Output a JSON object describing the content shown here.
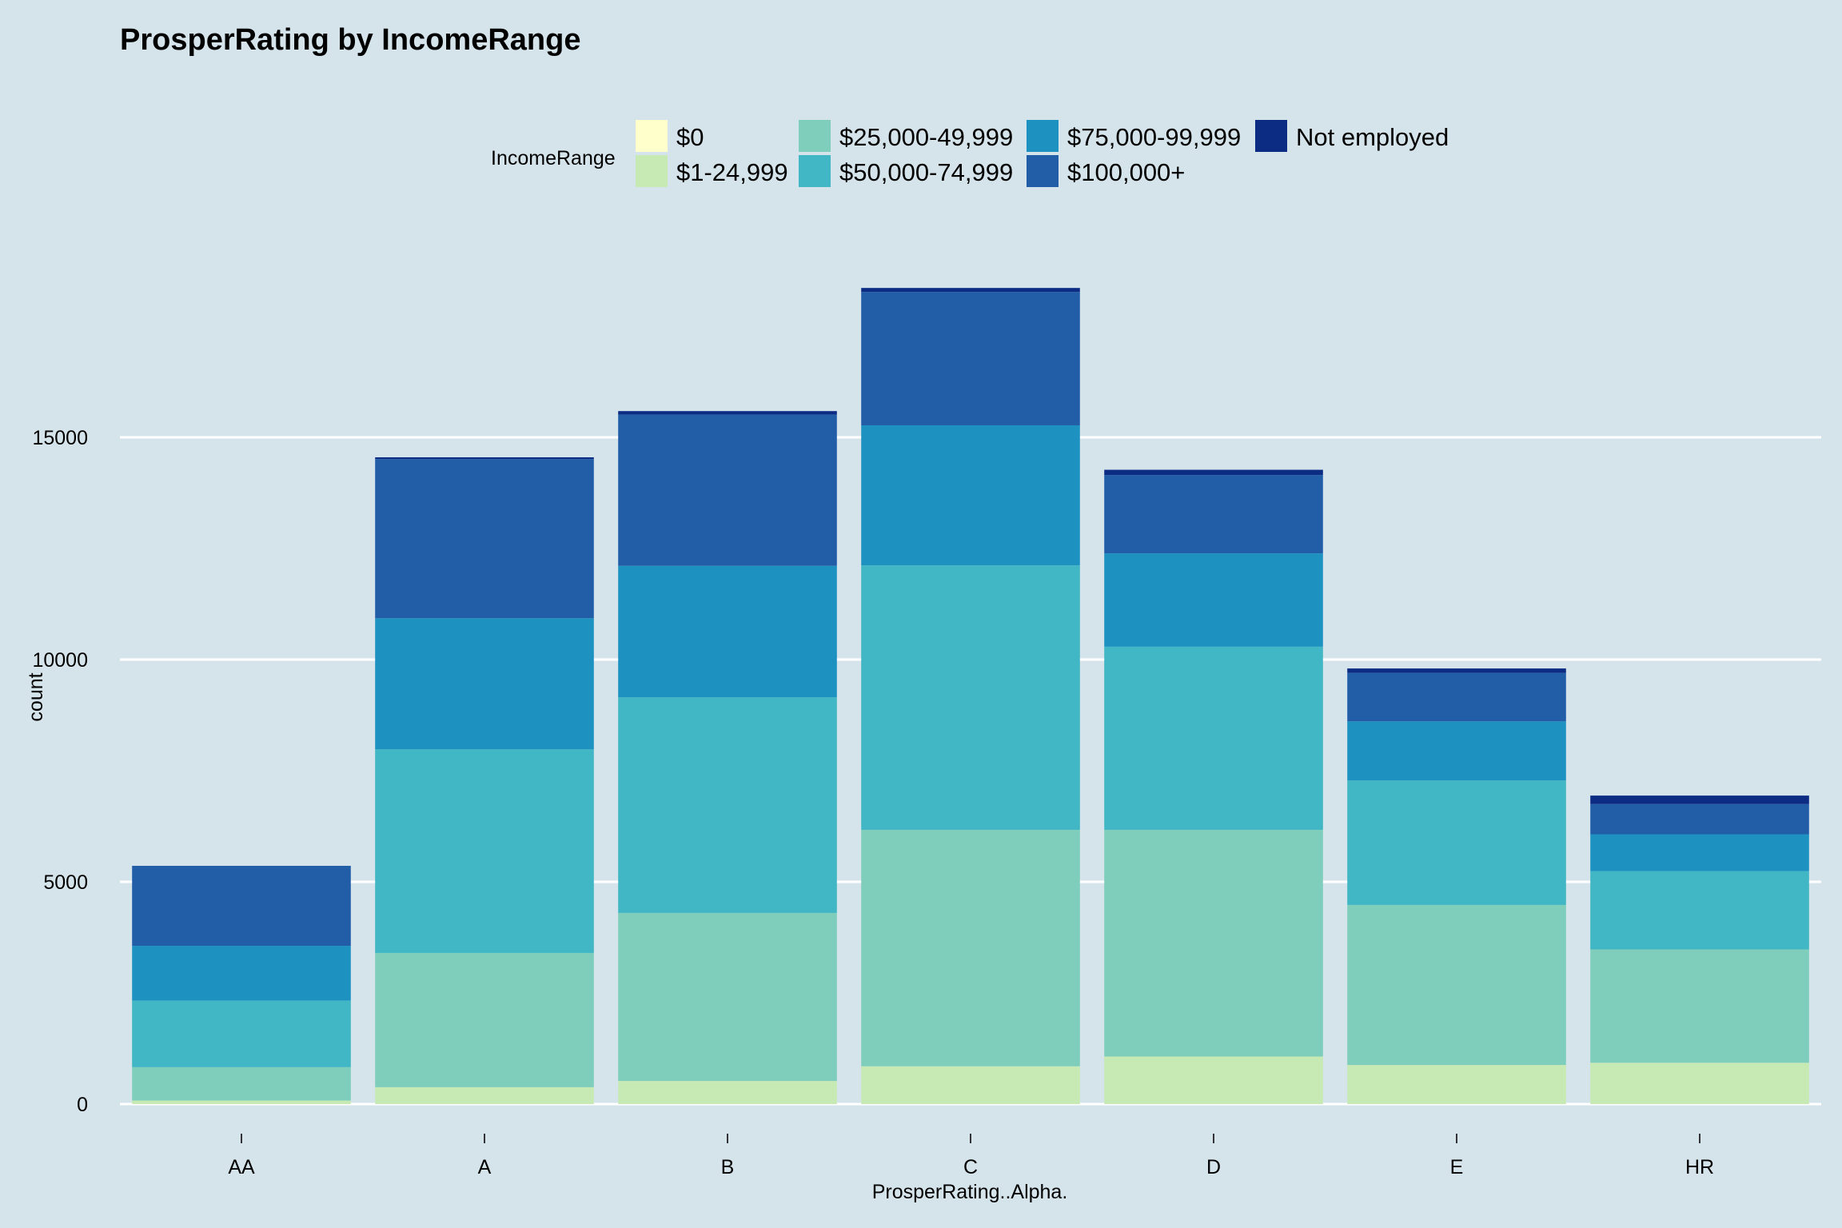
{
  "chart_data": {
    "type": "bar",
    "stacked": true,
    "title": "ProsperRating by IncomeRange",
    "xlabel": "ProsperRating..Alpha.",
    "ylabel": "count",
    "legend_title": "IncomeRange",
    "legend_position": "top",
    "grid": true,
    "ylim": [
      0,
      18500
    ],
    "yticks": [
      0,
      5000,
      10000,
      15000
    ],
    "ytick_labels": [
      "0",
      "5000",
      "10000",
      "15000"
    ],
    "categories": [
      "AA",
      "A",
      "B",
      "C",
      "D",
      "E",
      "HR"
    ],
    "series": [
      {
        "name": "$0",
        "color": "#ffffcc",
        "values": [
          0,
          0,
          0,
          0,
          0,
          0,
          0
        ]
      },
      {
        "name": "$1-24,999",
        "color": "#c7e9b4",
        "values": [
          80,
          380,
          520,
          850,
          1070,
          880,
          930
        ]
      },
      {
        "name": "$25,000-49,999",
        "color": "#7fcdbb",
        "values": [
          750,
          3020,
          3780,
          5320,
          5100,
          3600,
          2550
        ]
      },
      {
        "name": "$50,000-74,999",
        "color": "#41b6c4",
        "values": [
          1500,
          4580,
          4850,
          5950,
          4120,
          2800,
          1760
        ]
      },
      {
        "name": "$75,000-99,999",
        "color": "#1d91c0",
        "values": [
          1230,
          2950,
          2960,
          3150,
          2100,
          1330,
          830
        ]
      },
      {
        "name": "$100,000+",
        "color": "#225ea8",
        "values": [
          1800,
          3580,
          3400,
          3000,
          1760,
          1090,
          680
        ]
      },
      {
        "name": "Not employed",
        "color": "#0c2c84",
        "values": [
          0,
          40,
          80,
          90,
          120,
          100,
          190
        ]
      }
    ]
  }
}
